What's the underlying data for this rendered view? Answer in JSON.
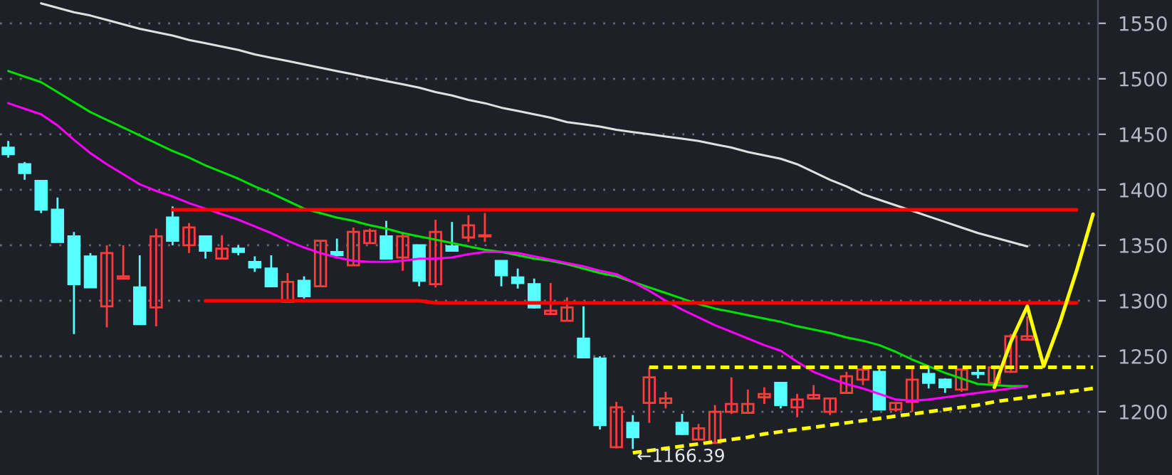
{
  "chart_data": {
    "type": "candlestick",
    "categories": [
      null,
      null,
      null,
      null,
      null,
      null,
      null,
      null,
      null,
      null,
      null,
      null,
      null,
      null,
      null,
      null,
      null,
      null,
      null,
      null,
      null,
      null,
      null,
      null,
      null,
      null,
      null,
      null,
      null,
      null,
      null,
      null,
      null,
      null,
      null,
      null,
      null,
      null,
      null,
      null,
      null,
      null,
      null,
      null,
      null,
      null,
      null,
      null,
      null,
      null,
      null,
      null,
      null,
      null,
      null,
      null,
      null,
      null,
      null,
      null,
      null,
      null,
      null,
      null,
      null,
      null,
      null
    ],
    "ohlc": [
      [
        1438,
        1444,
        1429,
        1432
      ],
      [
        1423,
        1425,
        1409,
        1415
      ],
      [
        1408,
        1408,
        1379,
        1382
      ],
      [
        1382,
        1393,
        1353,
        1353
      ],
      [
        1358,
        1362,
        1270,
        1315
      ],
      [
        1340,
        1343,
        1312,
        1312
      ],
      [
        1295,
        1350,
        1276,
        1343
      ],
      [
        1320,
        1350,
        1320,
        1322
      ],
      [
        1312,
        1341,
        1279,
        1279
      ],
      [
        1294,
        1365,
        1277,
        1358
      ],
      [
        1375,
        1385,
        1350,
        1354
      ],
      [
        1350,
        1370,
        1343,
        1366
      ],
      [
        1358,
        1358,
        1338,
        1345
      ],
      [
        1338,
        1359,
        1338,
        1347
      ],
      [
        1347,
        1350,
        1341,
        1344
      ],
      [
        1335,
        1340,
        1326,
        1330
      ],
      [
        1329,
        1341,
        1313,
        1313
      ],
      [
        1299,
        1325,
        1298,
        1317
      ],
      [
        1318,
        1322,
        1302,
        1304
      ],
      [
        1313,
        1354,
        1313,
        1354
      ],
      [
        1344,
        1356,
        1340,
        1341
      ],
      [
        1332,
        1366,
        1332,
        1362
      ],
      [
        1352,
        1365,
        1352,
        1363
      ],
      [
        1358,
        1372,
        1338,
        1338
      ],
      [
        1339,
        1362,
        1327,
        1358
      ],
      [
        1350,
        1350,
        1313,
        1318
      ],
      [
        1315,
        1373,
        1312,
        1362
      ],
      [
        1349,
        1371,
        1345,
        1345
      ],
      [
        1357,
        1377,
        1353,
        1368
      ],
      [
        1358,
        1379,
        1353,
        1359
      ],
      [
        1336,
        1336,
        1313,
        1323
      ],
      [
        1321,
        1329,
        1311,
        1316
      ],
      [
        1315,
        1320,
        1293,
        1294
      ],
      [
        1288,
        1316,
        1288,
        1291
      ],
      [
        1282,
        1303,
        1282,
        1294
      ],
      [
        1266,
        1295,
        1249,
        1249
      ],
      [
        1248,
        1250,
        1184,
        1188
      ],
      [
        1168,
        1209,
        1167,
        1204
      ],
      [
        1190,
        1197,
        1166.39,
        1177
      ],
      [
        1208,
        1240,
        1190,
        1231
      ],
      [
        1208,
        1218,
        1203,
        1212
      ],
      [
        1190,
        1198,
        1179,
        1180
      ],
      [
        1175,
        1189,
        1175,
        1185
      ],
      [
        1172,
        1206,
        1172,
        1200
      ],
      [
        1200,
        1231,
        1198,
        1207
      ],
      [
        1199,
        1220,
        1199,
        1207
      ],
      [
        1213,
        1222,
        1207,
        1216
      ],
      [
        1226,
        1226,
        1203,
        1206
      ],
      [
        1204,
        1216,
        1195,
        1211
      ],
      [
        1212,
        1224,
        1211,
        1215
      ],
      [
        1200,
        1212,
        1197,
        1212
      ],
      [
        1217,
        1236,
        1217,
        1232
      ],
      [
        1229,
        1241,
        1224,
        1238
      ],
      [
        1236,
        1241,
        1202,
        1202
      ],
      [
        1202,
        1208,
        1200,
        1208
      ],
      [
        1209,
        1239,
        1200,
        1229
      ],
      [
        1234,
        1241,
        1221,
        1226
      ],
      [
        1229,
        1230,
        1217,
        1222
      ],
      [
        1220,
        1239,
        1218,
        1238
      ],
      [
        1235,
        1241,
        1230,
        1234
      ],
      [
        1226,
        1240,
        1226,
        1240
      ],
      [
        1236,
        1270,
        1235,
        1268
      ],
      [
        1265,
        1286,
        1265,
        1268
      ],
      null,
      null,
      null,
      null
    ],
    "series": [
      {
        "type": "line",
        "color": "#e0e0e0",
        "values": [
          null,
          null,
          1568,
          1564,
          1560,
          1557,
          1553,
          1549,
          1545,
          1542,
          1539,
          1535,
          1532,
          1529,
          1526,
          1522,
          1519,
          1516,
          1513,
          1510,
          1507,
          1504,
          1501,
          1498,
          1495,
          1492,
          1488,
          1485,
          1481,
          1478,
          1474,
          1471,
          1468,
          1465,
          1461,
          1459,
          1457,
          1454,
          1452,
          1450,
          1448,
          1446,
          1444,
          1441,
          1438,
          1434,
          1431,
          1428,
          1423,
          1416,
          1409,
          1403,
          1396,
          1391,
          1386,
          1381,
          1376,
          1371,
          1366,
          1361,
          1357,
          1353,
          1349,
          null,
          null,
          null,
          null
        ]
      },
      {
        "type": "line",
        "color": "#00e000",
        "values": [
          1507,
          1502,
          1497,
          1488,
          1479,
          1470,
          1463,
          1456,
          1449,
          1442,
          1435,
          1429,
          1422,
          1416,
          1410,
          1403,
          1397,
          1390,
          1383,
          1379,
          1375,
          1372,
          1368,
          1365,
          1361,
          1358,
          1355,
          1352,
          1349,
          1346,
          1344,
          1341,
          1338,
          1336,
          1333,
          1329,
          1325,
          1322,
          1317,
          1312,
          1307,
          1302,
          1297,
          1293,
          1290,
          1287,
          1284,
          1281,
          1277,
          1274,
          1271,
          1267,
          1264,
          1260,
          1254,
          1247,
          1241,
          1235,
          1230,
          1225,
          1224,
          1223,
          1223,
          null,
          null,
          null,
          null
        ]
      },
      {
        "type": "line",
        "color": "#ff00ff",
        "values": [
          1478,
          1473,
          1468,
          1458,
          1445,
          1433,
          1423,
          1414,
          1405,
          1399,
          1394,
          1388,
          1383,
          1378,
          1373,
          1367,
          1361,
          1354,
          1348,
          1343,
          1339,
          1336,
          1335,
          1335,
          1336,
          1338,
          1338,
          1339,
          1342,
          1344,
          1344,
          1343,
          1340,
          1337,
          1334,
          1331,
          1327,
          1324,
          1317,
          1309,
          1300,
          1292,
          1285,
          1278,
          1272,
          1266,
          1260,
          1255,
          1245,
          1236,
          1230,
          1225,
          1221,
          1216,
          1211,
          1210,
          1211,
          1213,
          1215,
          1217,
          1219,
          1221,
          1223,
          null,
          null,
          null,
          null
        ]
      },
      {
        "type": "line",
        "color": "#ff0000",
        "values": [
          null,
          null,
          null,
          null,
          null,
          null,
          null,
          null,
          null,
          null,
          1382,
          1382,
          1382,
          1382,
          1382,
          1382,
          1382,
          1382,
          1382,
          1382,
          1382,
          1382,
          1382,
          1382,
          1382,
          1382,
          1382,
          1382,
          1382,
          1382,
          1382,
          1382,
          1382,
          1382,
          1382,
          1382,
          1382,
          1382,
          1382,
          1382,
          1382,
          1382,
          1382,
          1382,
          1382,
          1382,
          1382,
          1382,
          1382,
          1382,
          1382,
          1382,
          1382,
          1382,
          1382,
          1382,
          1382,
          1382,
          1382,
          1382,
          1382,
          1382,
          1382,
          1382,
          1382,
          1382,
          null
        ]
      },
      {
        "type": "line",
        "color": "#ff0000",
        "values": [
          null,
          null,
          null,
          null,
          null,
          null,
          null,
          null,
          null,
          null,
          null,
          null,
          1300,
          1300,
          1300,
          1300,
          1300,
          1300,
          1300,
          1300,
          1300,
          1300,
          1300,
          1300,
          1300,
          1300,
          1298,
          1298,
          1298,
          1298,
          1298,
          1298,
          1298,
          1298,
          1298,
          1298,
          1298,
          1298,
          1298,
          1298,
          1298,
          1298,
          1298,
          1298,
          1298,
          1298,
          1298,
          1298,
          1298,
          1298,
          1298,
          1298,
          1298,
          1298,
          1298,
          1298,
          1298,
          1298,
          1298,
          1298,
          1298,
          1298,
          1298,
          1298,
          1298,
          1298,
          null
        ]
      },
      {
        "type": "line",
        "color": "#ffff00",
        "line_style": "dashed",
        "values": [
          null,
          null,
          null,
          null,
          null,
          null,
          null,
          null,
          null,
          null,
          null,
          null,
          null,
          null,
          null,
          null,
          null,
          null,
          null,
          null,
          null,
          null,
          null,
          null,
          null,
          null,
          null,
          null,
          null,
          null,
          null,
          null,
          null,
          null,
          null,
          null,
          null,
          null,
          null,
          1240,
          1240,
          1240,
          1240,
          1240,
          1240,
          1240,
          1240,
          1240,
          1240,
          1240,
          1240,
          1240,
          1240,
          1240,
          1240,
          1240,
          1240,
          1240,
          1240,
          1240,
          1240,
          1240,
          1240,
          1240,
          1240,
          1240,
          1240
        ]
      },
      {
        "type": "line",
        "color": "#ffff00",
        "line_style": "dashed",
        "values": [
          null,
          null,
          null,
          null,
          null,
          null,
          null,
          null,
          null,
          null,
          null,
          null,
          null,
          null,
          null,
          null,
          null,
          null,
          null,
          null,
          null,
          null,
          null,
          null,
          null,
          null,
          null,
          null,
          null,
          null,
          null,
          null,
          null,
          null,
          null,
          null,
          null,
          null,
          1163,
          1165,
          1167,
          1169,
          1171,
          1173,
          1175,
          1177,
          1180,
          1182,
          1184,
          1186,
          1188,
          1190,
          1192,
          1194,
          1196,
          1198,
          1200,
          1202,
          1204,
          1206,
          1209,
          1211,
          1213,
          1215,
          1217,
          1219,
          1221
        ]
      },
      {
        "type": "line",
        "color": "#ffff00",
        "values": [
          null,
          null,
          null,
          null,
          null,
          null,
          null,
          null,
          null,
          null,
          null,
          null,
          null,
          null,
          null,
          null,
          null,
          null,
          null,
          null,
          null,
          null,
          null,
          null,
          null,
          null,
          null,
          null,
          null,
          null,
          null,
          null,
          null,
          null,
          null,
          null,
          null,
          null,
          null,
          null,
          null,
          null,
          null,
          null,
          null,
          null,
          null,
          null,
          null,
          null,
          null,
          null,
          null,
          null,
          null,
          null,
          null,
          null,
          null,
          null,
          1222,
          1263,
          1295,
          1241,
          1281,
          1327,
          1378
        ]
      }
    ],
    "annotations": [
      {
        "text": "←1166.39",
        "y": 1166.39
      }
    ],
    "ylim": [
      1143,
      1571
    ],
    "yticks": [
      1200,
      1250,
      1300,
      1350,
      1400,
      1450,
      1500,
      1550
    ],
    "grid": "y",
    "legend": false
  }
}
